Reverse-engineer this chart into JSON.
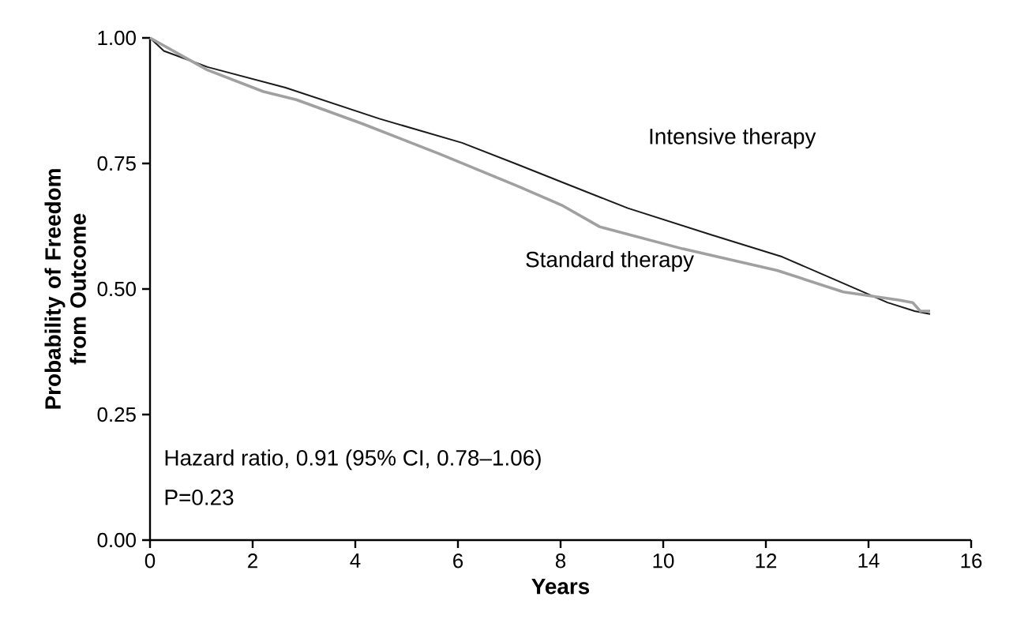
{
  "chart_data": {
    "type": "line",
    "xlabel": "Years",
    "ylabel": "Probability of Freedom\nfrom Outcome",
    "xlim": [
      0,
      16
    ],
    "xticks": [
      0,
      2,
      4,
      6,
      8,
      10,
      12,
      14,
      16
    ],
    "ylim": [
      0,
      1
    ],
    "yticks": [
      {
        "value": 0,
        "label": "0.00"
      },
      {
        "value": 0.25,
        "label": "0.25"
      },
      {
        "value": 0.5,
        "label": "0.50"
      },
      {
        "value": 0.75,
        "label": "0.75"
      },
      {
        "value": 1,
        "label": "1.00"
      }
    ],
    "legend": false,
    "grid": false,
    "marker": "none",
    "line_style": "solid",
    "series": [
      {
        "name": "Intensive therapy",
        "color": "#1a1a1a",
        "x": [
          0,
          0.27,
          1.12,
          2.64,
          4.47,
          6.08,
          7.16,
          8.02,
          9.31,
          10.93,
          12.32,
          13.29,
          14.37,
          14.9,
          15.2
        ],
        "values": [
          1.0,
          0.974,
          0.942,
          0.901,
          0.839,
          0.791,
          0.748,
          0.713,
          0.661,
          0.608,
          0.564,
          0.521,
          0.473,
          0.456,
          0.45
        ]
      },
      {
        "name": "Standard therapy",
        "color": "#a0a0a0",
        "x": [
          0,
          1.12,
          2.21,
          2.85,
          4.14,
          5.64,
          7.16,
          8.02,
          8.76,
          10.38,
          12.22,
          13.51,
          14.59,
          14.86,
          15.01,
          15.2
        ],
        "values": [
          1.0,
          0.936,
          0.893,
          0.877,
          0.829,
          0.769,
          0.705,
          0.667,
          0.624,
          0.58,
          0.537,
          0.494,
          0.478,
          0.473,
          0.456,
          0.456
        ]
      }
    ],
    "annotations": [
      "Hazard ratio, 0.91 (95% CI, 0.78–1.06)",
      "P=0.23"
    ]
  }
}
